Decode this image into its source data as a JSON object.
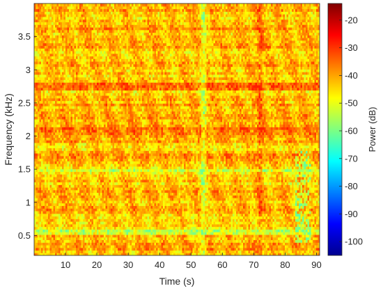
{
  "chart_data": {
    "type": "heatmap",
    "subtype": "spectrogram",
    "xlabel": "Time (s)",
    "ylabel": "Frequency (kHz)",
    "colorbar_label": "Power (dB)",
    "colormap": "jet",
    "xlim": [
      0,
      91
    ],
    "ylim": [
      0.2,
      4.0
    ],
    "clim": [
      -105,
      -14
    ],
    "xticks": [
      10,
      20,
      30,
      40,
      50,
      60,
      70,
      80,
      90
    ],
    "xtick_labels": [
      "10",
      "20",
      "30",
      "40",
      "50",
      "60",
      "70",
      "80",
      "90"
    ],
    "yticks": [
      0.5,
      1,
      1.5,
      2,
      2.5,
      3,
      3.5
    ],
    "ytick_labels": [
      "0.5",
      "1",
      "1.5",
      "2",
      "2.5",
      "3",
      "3.5"
    ],
    "cticks": [
      -100,
      -90,
      -80,
      -70,
      -60,
      -50,
      -40,
      -30,
      -20
    ],
    "ctick_labels": [
      "-100",
      "-90",
      "-80",
      "-70",
      "-60",
      "-50",
      "-40",
      "-30",
      "-20"
    ],
    "typical_power_db": -42,
    "power_range_in_plot_db": [
      -62,
      -28
    ],
    "features": [
      {
        "description": "low-power horizontal band",
        "frequency_khz": 0.58,
        "power_db": -57
      },
      {
        "description": "low-power horizontal band",
        "frequency_khz": 1.48,
        "power_db": -53
      },
      {
        "description": "higher-power horizontal band",
        "frequency_khz": 2.1,
        "power_db": -34
      },
      {
        "description": "higher-power horizontal band",
        "frequency_khz": 2.75,
        "power_db": -33
      },
      {
        "description": "low-power vertical streak",
        "time_s": 54,
        "power_db": -55
      },
      {
        "description": "high-power vertical streak",
        "time_s": 72,
        "power_db": -33
      },
      {
        "description": "low-power region",
        "time_range_s": [
          83,
          88
        ],
        "frequency_range_khz": [
          0.4,
          1.8
        ],
        "power_db": -58
      }
    ]
  }
}
